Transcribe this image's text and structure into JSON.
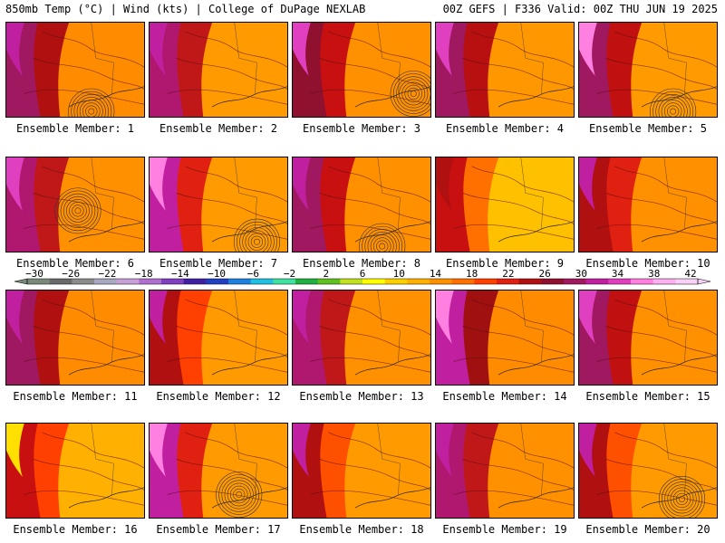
{
  "header": {
    "left": "850mb Temp (°C) | Wind (kts) | College of DuPage NEXLAB",
    "right": "00Z GEFS | F336 Valid: 00Z THU JUN 19 2025"
  },
  "colorbar": {
    "tick_labels": [
      "−30",
      "−26",
      "−22",
      "−18",
      "−14",
      "−10",
      "−6",
      "−2",
      "2",
      "6",
      "10",
      "14",
      "18",
      "22",
      "26",
      "30",
      "34",
      "38",
      "42"
    ],
    "tick_values": [
      -30,
      -26,
      -22,
      -18,
      -14,
      -10,
      -6,
      -2,
      2,
      6,
      10,
      14,
      18,
      22,
      26,
      30,
      34,
      38,
      42
    ],
    "colors": [
      "#7a8a7a",
      "#6a6a6a",
      "#8c8c8c",
      "#a8a8c0",
      "#c8a0d8",
      "#b070d0",
      "#8040c0",
      "#4020a0",
      "#2040c0",
      "#2080e0",
      "#20c0e0",
      "#40e0a0",
      "#20b040",
      "#60c020",
      "#c0e020",
      "#ffff00",
      "#ffd000",
      "#ffb000",
      "#ff9000",
      "#ff7000",
      "#ff4000",
      "#e02010",
      "#b01010",
      "#901030",
      "#a01860",
      "#c020a0",
      "#e040c0",
      "#ff80e0",
      "#ffb0f0",
      "#f8d0f8"
    ]
  },
  "panels": [
    {
      "label": "Ensemble Member: 1"
    },
    {
      "label": "Ensemble Member: 2"
    },
    {
      "label": "Ensemble Member: 3"
    },
    {
      "label": "Ensemble Member: 4"
    },
    {
      "label": "Ensemble Member: 5"
    },
    {
      "label": "Ensemble Member: 6"
    },
    {
      "label": "Ensemble Member: 7"
    },
    {
      "label": "Ensemble Member: 8"
    },
    {
      "label": "Ensemble Member: 9"
    },
    {
      "label": "Ensemble Member: 10"
    },
    {
      "label": "Ensemble Member: 11"
    },
    {
      "label": "Ensemble Member: 12"
    },
    {
      "label": "Ensemble Member: 13"
    },
    {
      "label": "Ensemble Member: 14"
    },
    {
      "label": "Ensemble Member: 15"
    },
    {
      "label": "Ensemble Member: 16"
    },
    {
      "label": "Ensemble Member: 17"
    },
    {
      "label": "Ensemble Member: 18"
    },
    {
      "label": "Ensemble Member: 19"
    },
    {
      "label": "Ensemble Member: 20"
    }
  ]
}
